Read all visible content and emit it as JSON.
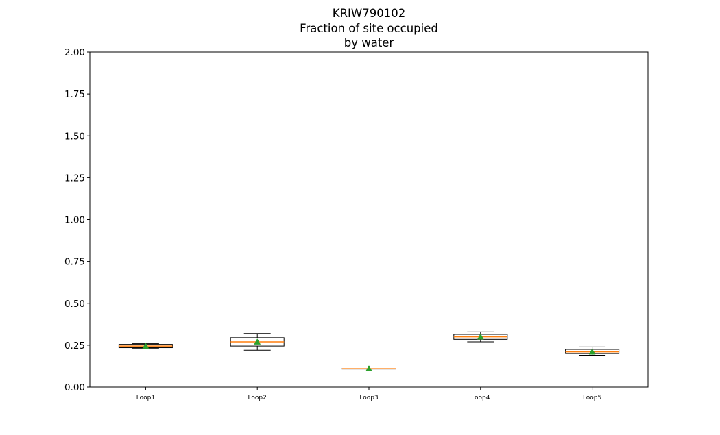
{
  "chart_data": {
    "type": "box",
    "title_lines": [
      "KRIW790102",
      "Fraction of site occupied",
      "by water"
    ],
    "xlabel": "",
    "ylabel": "",
    "ylim": [
      0,
      2.0
    ],
    "yticks": [
      0.0,
      0.25,
      0.5,
      0.75,
      1.0,
      1.25,
      1.5,
      1.75,
      2.0
    ],
    "ytick_labels": [
      "0.00",
      "0.25",
      "0.50",
      "0.75",
      "1.00",
      "1.25",
      "1.50",
      "1.75",
      "2.00"
    ],
    "grid": false,
    "legend": "none",
    "categories": [
      "Loop1",
      "Loop2",
      "Loop3",
      "Loop4",
      "Loop5"
    ],
    "boxes": [
      {
        "category": "Loop1",
        "whisker_low": 0.23,
        "q1": 0.235,
        "median": 0.245,
        "q3": 0.255,
        "whisker_high": 0.26,
        "mean": 0.245
      },
      {
        "category": "Loop2",
        "whisker_low": 0.22,
        "q1": 0.245,
        "median": 0.27,
        "q3": 0.295,
        "whisker_high": 0.32,
        "mean": 0.27
      },
      {
        "category": "Loop3",
        "whisker_low": 0.11,
        "q1": 0.11,
        "median": 0.11,
        "q3": 0.11,
        "whisker_high": 0.11,
        "mean": 0.11
      },
      {
        "category": "Loop4",
        "whisker_low": 0.27,
        "q1": 0.285,
        "median": 0.3,
        "q3": 0.315,
        "whisker_high": 0.33,
        "mean": 0.3
      },
      {
        "category": "Loop5",
        "whisker_low": 0.19,
        "q1": 0.2,
        "median": 0.21,
        "q3": 0.225,
        "whisker_high": 0.24,
        "mean": 0.21
      }
    ],
    "colors": {
      "box_edge": "#000000",
      "median_line": "#ff7f0e",
      "mean_marker": "#2ca02c",
      "axes": "#000000",
      "background": "#ffffff"
    }
  }
}
